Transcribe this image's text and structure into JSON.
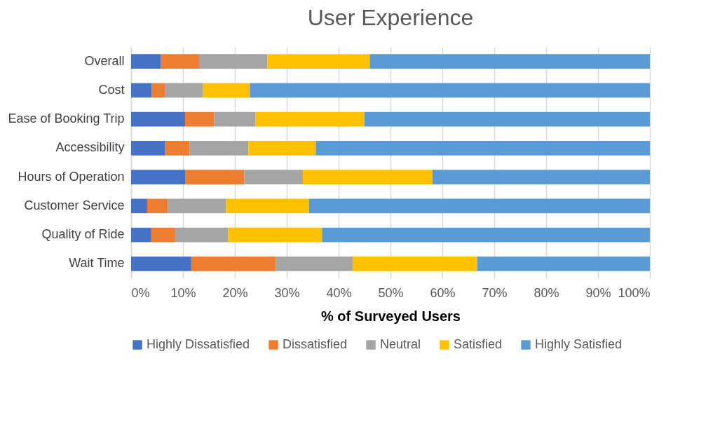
{
  "chart_data": {
    "type": "bar",
    "orientation": "horizontal",
    "stacked": true,
    "title": "User Experience",
    "xlabel": "% of Surveyed Users",
    "categories": [
      "Overall",
      "Cost",
      "Ease of Booking Trip",
      "Accessibility",
      "Hours of Operation",
      "Customer Service",
      "Quality of Ride",
      "Wait Time"
    ],
    "series": [
      {
        "name": "Highly Dissatisfied",
        "color": "#4472c4",
        "values": [
          5.7,
          4.0,
          10.4,
          6.5,
          10.5,
          3.1,
          3.9,
          11.6
        ]
      },
      {
        "name": "Dissatisfied",
        "color": "#ed7d31",
        "values": [
          7.4,
          2.5,
          5.6,
          4.8,
          11.3,
          4.0,
          4.6,
          16.3
        ]
      },
      {
        "name": "Neutral",
        "color": "#a5a5a5",
        "values": [
          13.2,
          7.3,
          8.0,
          11.3,
          11.3,
          11.2,
          10.2,
          14.8
        ]
      },
      {
        "name": "Satisfied",
        "color": "#ffc000",
        "values": [
          19.7,
          9.1,
          21.0,
          13.0,
          25.0,
          16.0,
          18.1,
          24.0
        ]
      },
      {
        "name": "Highly Satisfied",
        "color": "#5b9bd5",
        "values": [
          54.0,
          77.1,
          55.0,
          64.4,
          41.9,
          65.7,
          63.2,
          33.3
        ]
      }
    ],
    "xlim": [
      0,
      100
    ],
    "xticks": [
      {
        "value": 0,
        "label": "0%"
      },
      {
        "value": 10,
        "label": "10%"
      },
      {
        "value": 20,
        "label": "20%"
      },
      {
        "value": 30,
        "label": "30%"
      },
      {
        "value": 40,
        "label": "40%"
      },
      {
        "value": 50,
        "label": "50%"
      },
      {
        "value": 60,
        "label": "60%"
      },
      {
        "value": 70,
        "label": "70%"
      },
      {
        "value": 80,
        "label": "80%"
      },
      {
        "value": 90,
        "label": "90%"
      },
      {
        "value": 100,
        "label": "100%"
      }
    ],
    "grid": "x",
    "legend": "bottom"
  }
}
